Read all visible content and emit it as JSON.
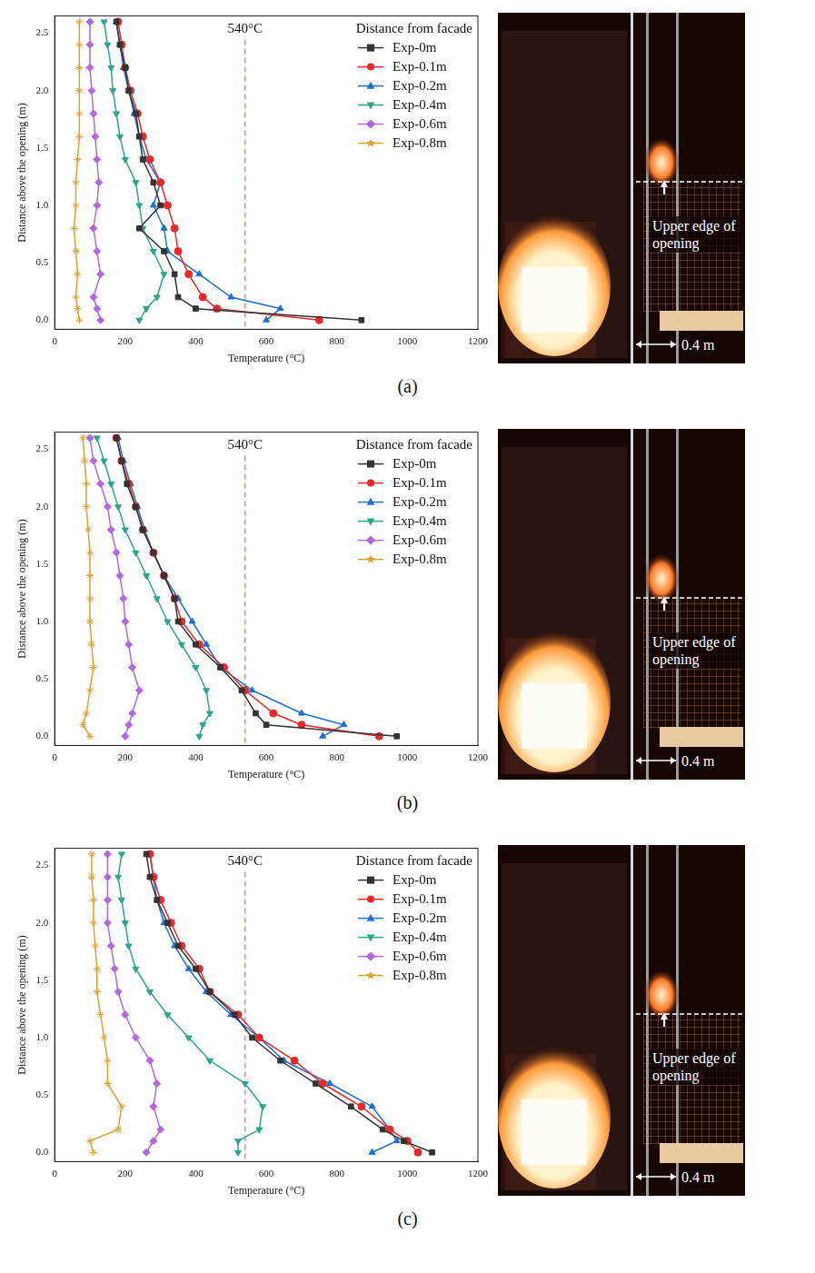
{
  "chart_data": [
    {
      "type": "line",
      "label": "(a)",
      "x_label": "Temperature (°C)",
      "y_label": "Distance above the opening (m)",
      "legend_title": "Distance from facade",
      "legend": "upper right",
      "grid": false,
      "xlim": [
        0,
        1200
      ],
      "xticks": [
        0,
        200,
        400,
        600,
        800,
        1000,
        1200
      ],
      "ylim": [
        -0.08,
        2.65
      ],
      "yticks": [
        {
          "value": 0,
          "label": "0.0"
        },
        0.5,
        {
          "value": 1,
          "label": "1.0"
        },
        1.5,
        {
          "value": 2,
          "label": "2.0"
        },
        2.5
      ],
      "reference_line": {
        "x": 540,
        "label": "540°C",
        "color": "#ff6f6f",
        "line_style": "dashed"
      },
      "y": [
        0,
        0.1,
        0.2,
        0.4,
        0.6,
        0.8,
        1.0,
        1.2,
        1.4,
        1.6,
        1.8,
        2.0,
        2.2,
        2.4,
        2.6
      ],
      "series": [
        {
          "name": "Exp-0m",
          "color": "#333333",
          "marker": "square",
          "x": [
            870,
            400,
            350,
            340,
            310,
            240,
            300,
            280,
            250,
            240,
            230,
            210,
            200,
            185,
            175
          ]
        },
        {
          "name": "Exp-0.1m",
          "color": "#e8282b",
          "marker": "circle",
          "x": [
            750,
            460,
            420,
            380,
            350,
            340,
            320,
            300,
            270,
            250,
            235,
            215,
            200,
            190,
            180
          ]
        },
        {
          "name": "Exp-0.2m",
          "color": "#1f6fd4",
          "marker": "triangle",
          "x": [
            600,
            640,
            500,
            410,
            320,
            310,
            280,
            300,
            260,
            240,
            225,
            210,
            195,
            185,
            175
          ]
        },
        {
          "name": "Exp-0.4m",
          "color": "#2ca58d",
          "marker": "triangle_down",
          "x": [
            240,
            260,
            290,
            310,
            280,
            250,
            240,
            230,
            200,
            185,
            175,
            165,
            160,
            150,
            140
          ]
        },
        {
          "name": "Exp-0.6m",
          "color": "#b366e0",
          "marker": "diamond",
          "x": [
            130,
            120,
            110,
            130,
            120,
            110,
            120,
            125,
            120,
            115,
            110,
            105,
            100,
            100,
            100
          ]
        },
        {
          "name": "Exp-0.8m",
          "color": "#e0a030",
          "marker": "star",
          "x": [
            70,
            65,
            60,
            65,
            60,
            55,
            60,
            60,
            65,
            70,
            70,
            70,
            70,
            70,
            70
          ]
        }
      ],
      "photo": {
        "annotations": [
          "Upper edge of opening",
          "0.4 m"
        ]
      }
    },
    {
      "type": "line",
      "label": "(b)",
      "x_label": "Temperature (°C)",
      "y_label": "Distance above the opening (m)",
      "legend_title": "Distance from facade",
      "legend": "upper right",
      "grid": false,
      "xlim": [
        0,
        1200
      ],
      "xticks": [
        0,
        200,
        400,
        600,
        800,
        1000,
        1200
      ],
      "ylim": [
        -0.08,
        2.65
      ],
      "yticks": [
        {
          "value": 0,
          "label": "0.0"
        },
        0.5,
        {
          "value": 1,
          "label": "1.0"
        },
        1.5,
        {
          "value": 2,
          "label": "2.0"
        },
        2.5
      ],
      "reference_line": {
        "x": 540,
        "label": "540°C",
        "color": "#ff6f6f",
        "line_style": "dashed"
      },
      "y": [
        0,
        0.1,
        0.2,
        0.4,
        0.6,
        0.8,
        1.0,
        1.2,
        1.4,
        1.6,
        1.8,
        2.0,
        2.2,
        2.4,
        2.6
      ],
      "series": [
        {
          "name": "Exp-0m",
          "color": "#333333",
          "marker": "square",
          "x": [
            970,
            600,
            570,
            530,
            470,
            400,
            350,
            340,
            310,
            280,
            250,
            230,
            205,
            190,
            175
          ]
        },
        {
          "name": "Exp-0.1m",
          "color": "#e8282b",
          "marker": "circle",
          "x": [
            920,
            700,
            620,
            540,
            480,
            410,
            360,
            340,
            310,
            280,
            250,
            230,
            210,
            190,
            175
          ]
        },
        {
          "name": "Exp-0.2m",
          "color": "#1f6fd4",
          "marker": "triangle",
          "x": [
            760,
            820,
            700,
            560,
            470,
            430,
            390,
            350,
            310,
            280,
            255,
            235,
            215,
            195,
            180
          ]
        },
        {
          "name": "Exp-0.4m",
          "color": "#2ca58d",
          "marker": "triangle_down",
          "x": [
            410,
            420,
            440,
            430,
            400,
            360,
            320,
            290,
            260,
            230,
            200,
            180,
            160,
            140,
            120
          ]
        },
        {
          "name": "Exp-0.6m",
          "color": "#b366e0",
          "marker": "diamond",
          "x": [
            200,
            210,
            220,
            240,
            220,
            210,
            200,
            195,
            185,
            175,
            160,
            150,
            130,
            110,
            100
          ]
        },
        {
          "name": "Exp-0.8m",
          "color": "#e0a030",
          "marker": "star",
          "x": [
            100,
            80,
            90,
            100,
            110,
            105,
            100,
            100,
            100,
            100,
            95,
            90,
            90,
            85,
            80
          ]
        }
      ],
      "photo": {
        "annotations": [
          "Upper edge of opening",
          "0.4 m"
        ]
      }
    },
    {
      "type": "line",
      "label": "(c)",
      "x_label": "Temperature (°C)",
      "y_label": "Distance above the opening (m)",
      "legend_title": "Distance from facade",
      "legend": "upper right",
      "grid": false,
      "xlim": [
        0,
        1200
      ],
      "xticks": [
        0,
        200,
        400,
        600,
        800,
        1000,
        1200
      ],
      "ylim": [
        -0.08,
        2.65
      ],
      "yticks": [
        {
          "value": 0,
          "label": "0.0"
        },
        0.5,
        {
          "value": 1,
          "label": "1.0"
        },
        1.5,
        {
          "value": 2,
          "label": "2.0"
        },
        2.5
      ],
      "reference_line": {
        "x": 540,
        "label": "540°C",
        "color": "#ff6f6f",
        "line_style": "dashed"
      },
      "y": [
        0,
        0.1,
        0.2,
        0.4,
        0.6,
        0.8,
        1.0,
        1.2,
        1.4,
        1.6,
        1.8,
        2.0,
        2.2,
        2.4,
        2.6
      ],
      "series": [
        {
          "name": "Exp-0m",
          "color": "#333333",
          "marker": "square",
          "x": [
            1070,
            990,
            930,
            840,
            740,
            640,
            560,
            510,
            440,
            400,
            350,
            320,
            290,
            270,
            260
          ]
        },
        {
          "name": "Exp-0.1m",
          "color": "#e8282b",
          "marker": "circle",
          "x": [
            1030,
            1000,
            950,
            870,
            760,
            680,
            580,
            520,
            440,
            410,
            360,
            330,
            300,
            280,
            270
          ]
        },
        {
          "name": "Exp-0.2m",
          "color": "#1f6fd4",
          "marker": "triangle",
          "x": [
            900,
            970,
            950,
            900,
            780,
            650,
            580,
            500,
            430,
            380,
            340,
            310,
            290,
            280,
            270
          ]
        },
        {
          "name": "Exp-0.4m",
          "color": "#2ca58d",
          "marker": "triangle_down",
          "x": [
            520,
            520,
            580,
            590,
            540,
            440,
            380,
            320,
            270,
            230,
            210,
            200,
            190,
            180,
            190
          ]
        },
        {
          "name": "Exp-0.6m",
          "color": "#b366e0",
          "marker": "diamond",
          "x": [
            260,
            280,
            300,
            280,
            290,
            270,
            230,
            200,
            180,
            170,
            160,
            150,
            150,
            150,
            150
          ]
        },
        {
          "name": "Exp-0.8m",
          "color": "#e0a030",
          "marker": "star",
          "x": [
            110,
            100,
            180,
            190,
            150,
            150,
            140,
            130,
            120,
            120,
            115,
            110,
            110,
            105,
            105
          ]
        }
      ],
      "photo": {
        "annotations": [
          "Upper edge of opening",
          "0.4 m"
        ]
      }
    }
  ]
}
